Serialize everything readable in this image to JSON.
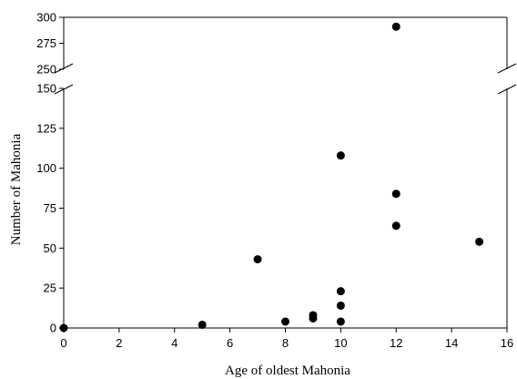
{
  "chart_data": {
    "type": "scatter",
    "title": "",
    "xlabel": "Age of oldest Mahonia",
    "ylabel": "Number of Mahonia",
    "xlim": [
      0,
      16
    ],
    "x_ticks": [
      "0",
      "2",
      "4",
      "6",
      "8",
      "10",
      "12",
      "14",
      "16"
    ],
    "y_axis_break": {
      "lower_range": [
        0,
        150
      ],
      "upper_range": [
        250,
        300
      ]
    },
    "y_ticks_lower": [
      "0",
      "25",
      "50",
      "75",
      "100",
      "125",
      "150"
    ],
    "y_ticks_upper": [
      "250",
      "275",
      "300"
    ],
    "grid": false,
    "legend": "none",
    "marker_color": "#000000",
    "series": [
      {
        "points": [
          {
            "x": 0,
            "y": 0
          },
          {
            "x": 5,
            "y": 2
          },
          {
            "x": 7,
            "y": 43
          },
          {
            "x": 8,
            "y": 4
          },
          {
            "x": 9,
            "y": 6
          },
          {
            "x": 9,
            "y": 8
          },
          {
            "x": 10,
            "y": 4
          },
          {
            "x": 10,
            "y": 14
          },
          {
            "x": 10,
            "y": 23
          },
          {
            "x": 10,
            "y": 108
          },
          {
            "x": 12,
            "y": 64
          },
          {
            "x": 12,
            "y": 84
          },
          {
            "x": 12,
            "y": 291
          },
          {
            "x": 15,
            "y": 54
          }
        ]
      }
    ]
  }
}
